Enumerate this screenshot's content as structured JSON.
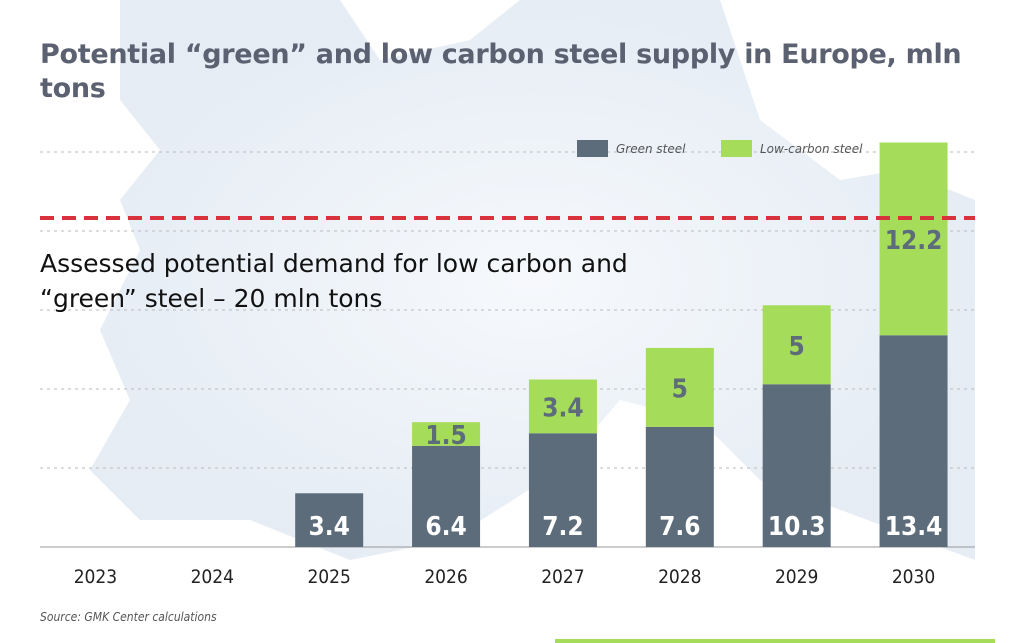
{
  "chart_data": {
    "type": "bar",
    "stacked": true,
    "title": "Potential “green” and low carbon steel supply in Europe, mln tons",
    "categories": [
      "2023",
      "2024",
      "2025",
      "2026",
      "2027",
      "2028",
      "2029",
      "2030"
    ],
    "series": [
      {
        "name": "Green steel",
        "color": "#5c6c7a",
        "values": [
          0,
          0,
          3.4,
          6.4,
          7.2,
          7.6,
          10.3,
          13.4
        ]
      },
      {
        "name": "Low-carbon steel",
        "color": "#a5dc5a",
        "values": [
          0,
          0,
          0,
          1.5,
          3.4,
          5,
          5,
          12.2
        ]
      }
    ],
    "reference_line": {
      "value": 20,
      "color": "#d9323c",
      "style": "dashed",
      "label": "Assessed potential demand for low carbon and “green” steel – 20 mln tons"
    },
    "ylim": [
      0,
      25
    ],
    "grid": true,
    "legend": "top-right",
    "source": "Source: GMK Center calculations"
  }
}
